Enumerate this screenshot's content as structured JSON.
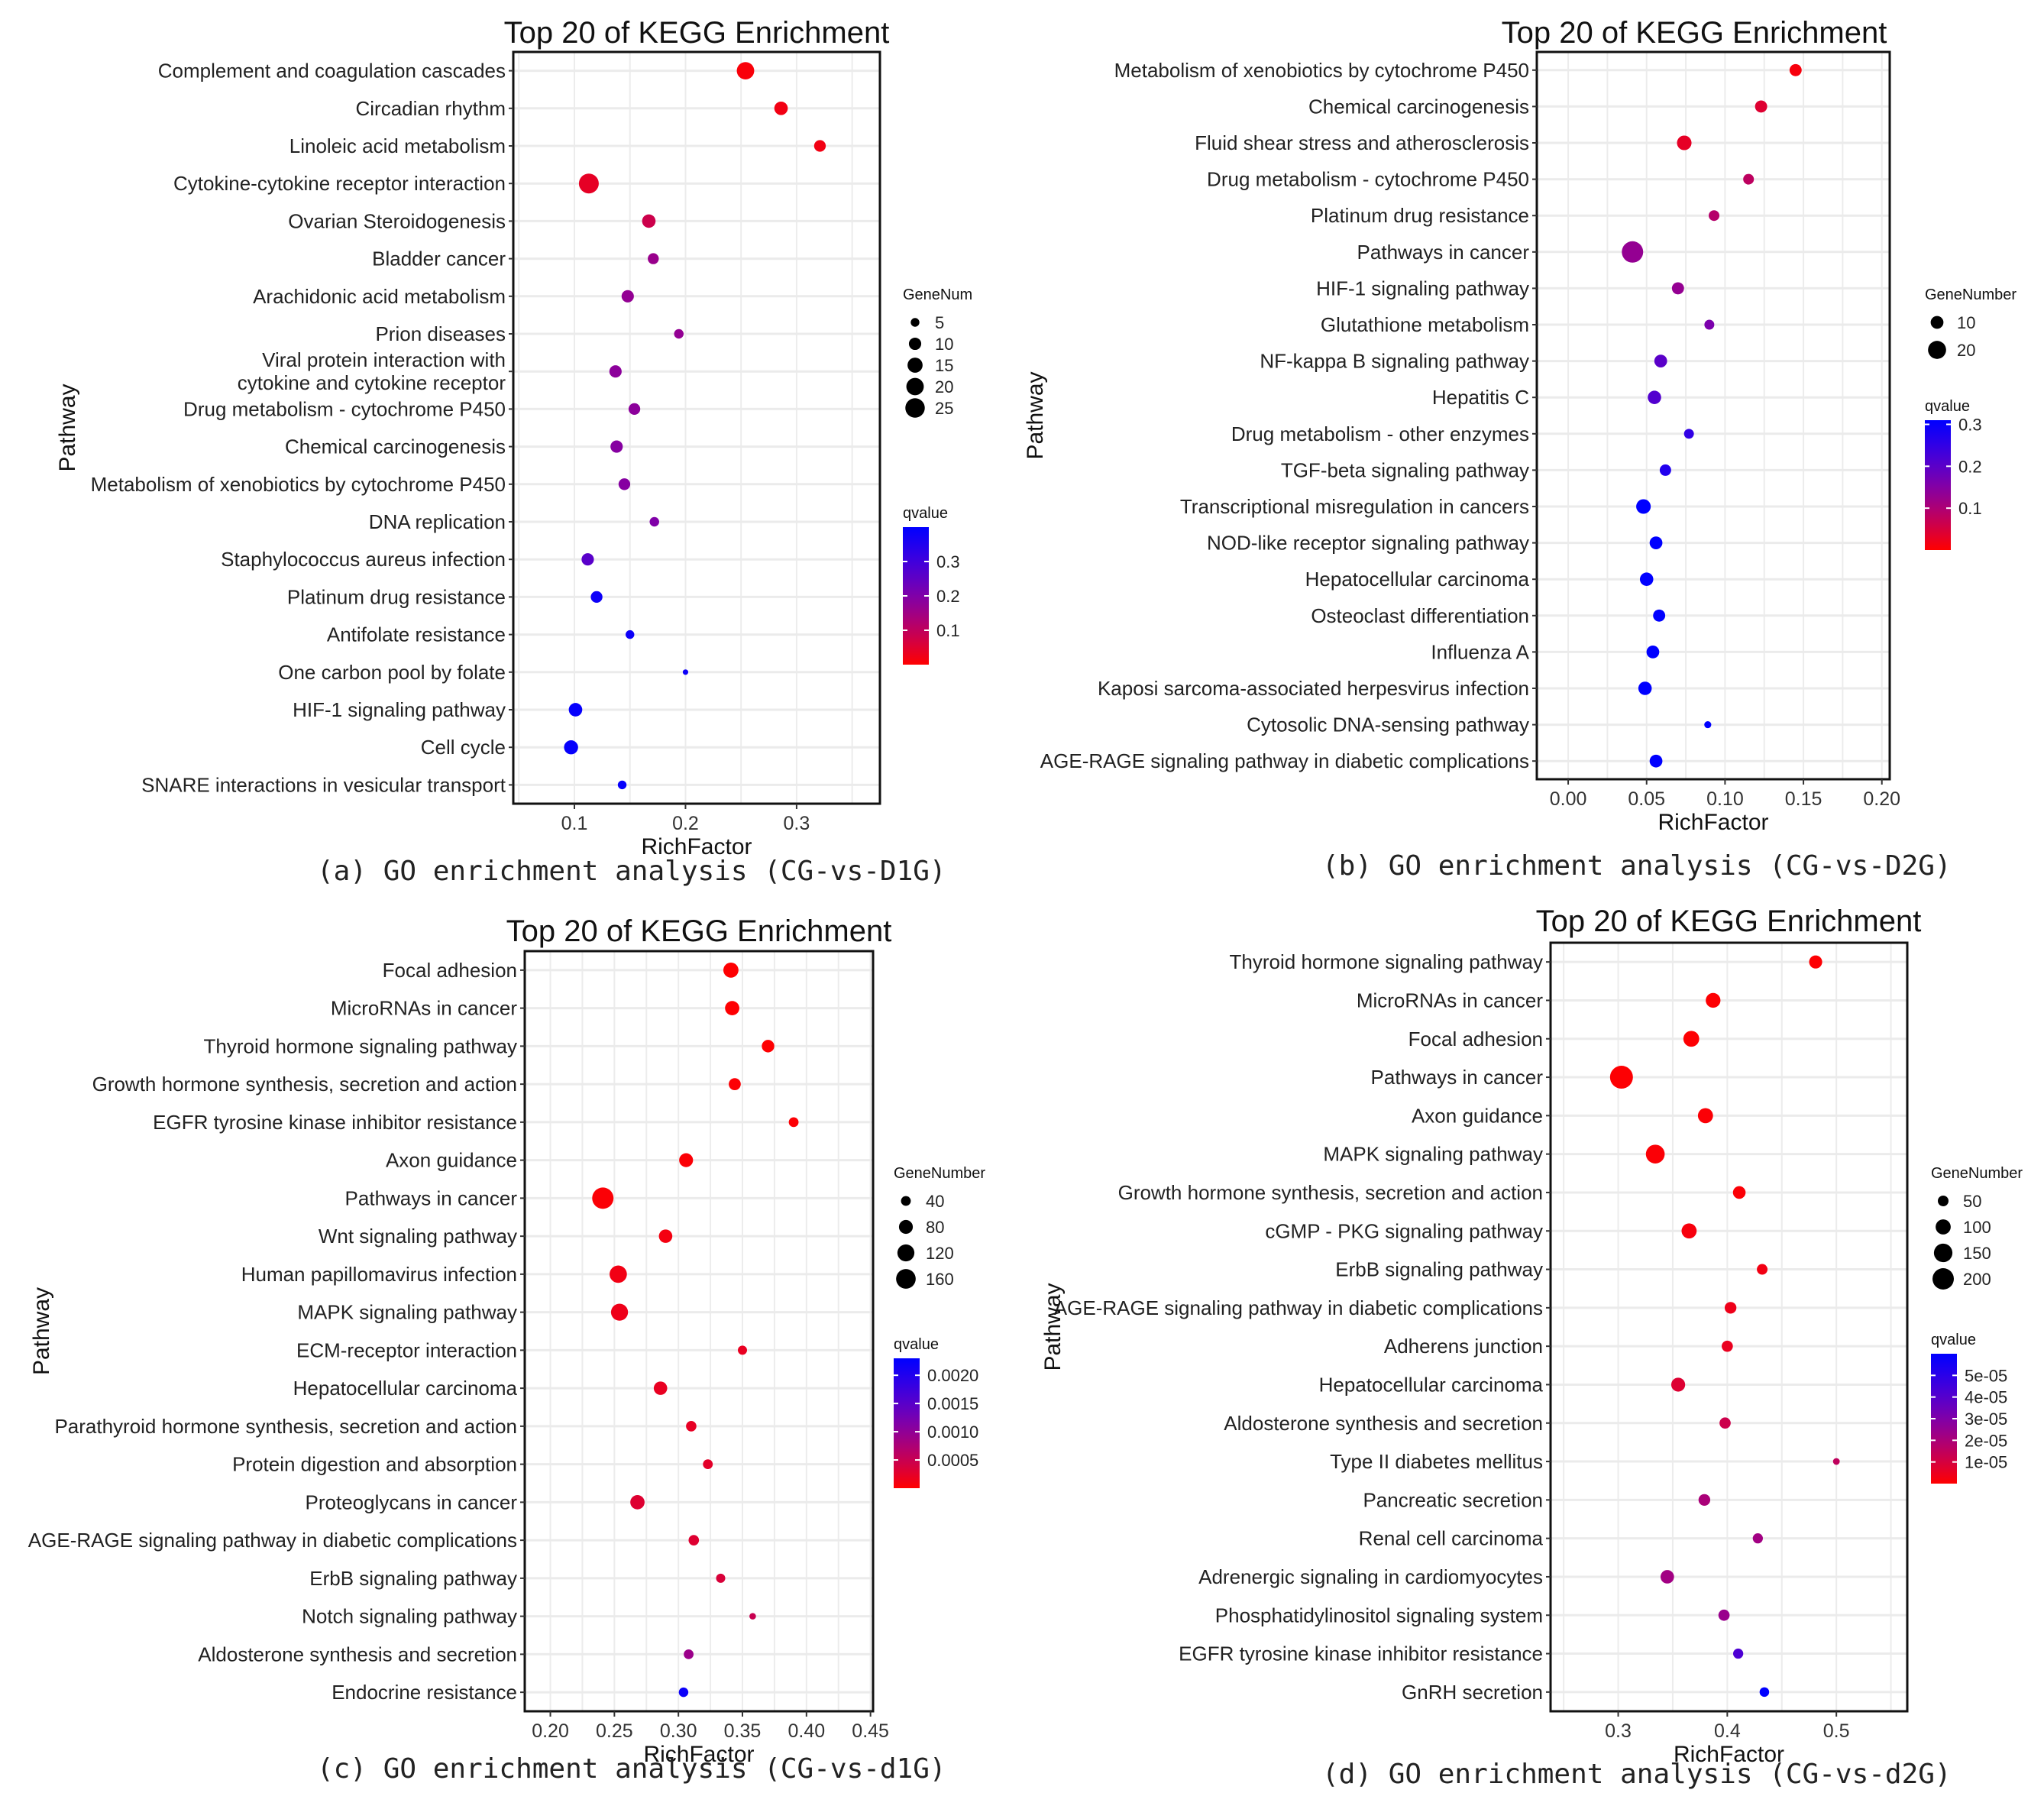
{
  "chart_data": [
    {
      "id": "a",
      "type": "scatter",
      "title": "Top 20 of KEGG Enrichment",
      "xlabel": "RichFactor",
      "ylabel": "Pathway",
      "caption": "(a)  GO enrichment analysis (CG-vs-D1G)",
      "xlim": [
        0.045,
        0.375
      ],
      "xticks": [
        0.1,
        0.2,
        0.3
      ],
      "xtick_labels": [
        "0.1",
        "0.2",
        "0.3"
      ],
      "grid": true,
      "size_legend": {
        "title": "GeneNum",
        "values": [
          5,
          10,
          15,
          20,
          25
        ]
      },
      "color_legend": {
        "title": "qvalue",
        "range": [
          0.0,
          0.4
        ],
        "ticks": [
          0.1,
          0.2,
          0.3
        ],
        "tick_labels": [
          "0.1",
          "0.2",
          "0.3"
        ],
        "low_color": "#ff0000",
        "high_color": "#0000ff"
      },
      "size_range": [
        3,
        26
      ],
      "points": [
        {
          "pathway": "Complement and coagulation cascades",
          "rich_factor": 0.254,
          "gene_number": 20,
          "qvalue": 0.01
        },
        {
          "pathway": "Circadian rhythm",
          "rich_factor": 0.286,
          "gene_number": 12,
          "qvalue": 0.02
        },
        {
          "pathway": "Linoleic acid metabolism",
          "rich_factor": 0.321,
          "gene_number": 9,
          "qvalue": 0.02
        },
        {
          "pathway": "Cytokine-cytokine receptor interaction",
          "rich_factor": 0.113,
          "gene_number": 26,
          "qvalue": 0.04
        },
        {
          "pathway": "Ovarian Steroidogenesis",
          "rich_factor": 0.167,
          "gene_number": 12,
          "qvalue": 0.08
        },
        {
          "pathway": "Bladder cancer",
          "rich_factor": 0.171,
          "gene_number": 8,
          "qvalue": 0.16
        },
        {
          "pathway": "Arachidonic acid metabolism",
          "rich_factor": 0.148,
          "gene_number": 10,
          "qvalue": 0.17
        },
        {
          "pathway": "Prion diseases",
          "rich_factor": 0.194,
          "gene_number": 6,
          "qvalue": 0.17
        },
        {
          "pathway": "Viral protein interaction with\ncytokine and cytokine receptor",
          "rich_factor": 0.137,
          "gene_number": 10,
          "qvalue": 0.18
        },
        {
          "pathway": "Drug metabolism - cytochrome P450",
          "rich_factor": 0.154,
          "gene_number": 9,
          "qvalue": 0.18
        },
        {
          "pathway": "Chemical carcinogenesis",
          "rich_factor": 0.138,
          "gene_number": 10,
          "qvalue": 0.19
        },
        {
          "pathway": "Metabolism of xenobiotics by cytochrome P450",
          "rich_factor": 0.145,
          "gene_number": 9,
          "qvalue": 0.19
        },
        {
          "pathway": "DNA replication",
          "rich_factor": 0.172,
          "gene_number": 6,
          "qvalue": 0.2
        },
        {
          "pathway": "Staphylococcus aureus infection",
          "rich_factor": 0.112,
          "gene_number": 10,
          "qvalue": 0.26
        },
        {
          "pathway": "Platinum drug resistance",
          "rich_factor": 0.12,
          "gene_number": 9,
          "qvalue": 0.38
        },
        {
          "pathway": "Antifolate resistance",
          "rich_factor": 0.15,
          "gene_number": 5,
          "qvalue": 0.38
        },
        {
          "pathway": "One carbon pool by folate",
          "rich_factor": 0.2,
          "gene_number": 2,
          "qvalue": 0.38
        },
        {
          "pathway": "HIF-1 signaling pathway",
          "rich_factor": 0.101,
          "gene_number": 12,
          "qvalue": 0.39
        },
        {
          "pathway": "Cell cycle",
          "rich_factor": 0.097,
          "gene_number": 13,
          "qvalue": 0.39
        },
        {
          "pathway": "SNARE interactions in vesicular transport",
          "rich_factor": 0.143,
          "gene_number": 5,
          "qvalue": 0.39
        }
      ]
    },
    {
      "id": "b",
      "type": "scatter",
      "title": "Top 20 of KEGG Enrichment",
      "xlabel": "RichFactor",
      "ylabel": "Pathway",
      "caption": "(b)  GO enrichment analysis (CG-vs-D2G)",
      "xlim": [
        -0.02,
        0.205
      ],
      "xticks": [
        0.0,
        0.05,
        0.1,
        0.15,
        0.2
      ],
      "xtick_labels": [
        "0.00",
        "0.05",
        "0.10",
        "0.15",
        "0.20"
      ],
      "grid": true,
      "size_legend": {
        "title": "GeneNumber",
        "values": [
          10,
          20
        ]
      },
      "color_legend": {
        "title": "qvalue",
        "range": [
          0.0,
          0.31
        ],
        "ticks": [
          0.1,
          0.2,
          0.3
        ],
        "tick_labels": [
          "0.1",
          "0.2",
          "0.3"
        ],
        "low_color": "#ff0000",
        "high_color": "#0000ff"
      },
      "size_range": [
        3,
        28
      ],
      "points": [
        {
          "pathway": "Metabolism of xenobiotics by cytochrome P450",
          "rich_factor": 0.145,
          "gene_number": 9,
          "qvalue": 0.01
        },
        {
          "pathway": "Chemical carcinogenesis",
          "rich_factor": 0.123,
          "gene_number": 9,
          "qvalue": 0.04
        },
        {
          "pathway": "Fluid shear stress and atherosclerosis",
          "rich_factor": 0.074,
          "gene_number": 13,
          "qvalue": 0.03
        },
        {
          "pathway": "Drug metabolism - cytochrome P450",
          "rich_factor": 0.115,
          "gene_number": 7,
          "qvalue": 0.08
        },
        {
          "pathway": "Platinum drug resistance",
          "rich_factor": 0.093,
          "gene_number": 7,
          "qvalue": 0.09
        },
        {
          "pathway": "Pathways in cancer",
          "rich_factor": 0.041,
          "gene_number": 28,
          "qvalue": 0.13
        },
        {
          "pathway": "HIF-1 signaling pathway",
          "rich_factor": 0.07,
          "gene_number": 9,
          "qvalue": 0.13
        },
        {
          "pathway": "Glutathione metabolism",
          "rich_factor": 0.09,
          "gene_number": 6,
          "qvalue": 0.16
        },
        {
          "pathway": "NF-kappa B signaling pathway",
          "rich_factor": 0.059,
          "gene_number": 10,
          "qvalue": 0.2
        },
        {
          "pathway": "Hepatitis C",
          "rich_factor": 0.055,
          "gene_number": 11,
          "qvalue": 0.21
        },
        {
          "pathway": "Drug metabolism - other enzymes",
          "rich_factor": 0.077,
          "gene_number": 6,
          "qvalue": 0.25
        },
        {
          "pathway": "TGF-beta signaling pathway",
          "rich_factor": 0.062,
          "gene_number": 8,
          "qvalue": 0.27
        },
        {
          "pathway": "Transcriptional misregulation in cancers",
          "rich_factor": 0.048,
          "gene_number": 13,
          "qvalue": 0.31
        },
        {
          "pathway": "NOD-like receptor signaling pathway",
          "rich_factor": 0.056,
          "gene_number": 10,
          "qvalue": 0.31
        },
        {
          "pathway": "Hepatocellular carcinoma",
          "rich_factor": 0.05,
          "gene_number": 11,
          "qvalue": 0.31
        },
        {
          "pathway": "Osteoclast differentiation",
          "rich_factor": 0.058,
          "gene_number": 9,
          "qvalue": 0.31
        },
        {
          "pathway": "Influenza A",
          "rich_factor": 0.054,
          "gene_number": 10,
          "qvalue": 0.31
        },
        {
          "pathway": "Kaposi sarcoma-associated herpesvirus infection",
          "rich_factor": 0.049,
          "gene_number": 11,
          "qvalue": 0.31
        },
        {
          "pathway": "Cytosolic DNA-sensing pathway",
          "rich_factor": 0.089,
          "gene_number": 3,
          "qvalue": 0.31
        },
        {
          "pathway": "AGE-RAGE signaling pathway in diabetic complications",
          "rich_factor": 0.056,
          "gene_number": 10,
          "qvalue": 0.31
        }
      ]
    },
    {
      "id": "c",
      "type": "scatter",
      "title": "Top 20 of KEGG Enrichment",
      "xlabel": "RichFactor",
      "ylabel": "Pathway",
      "caption": "(c)  GO enrichment analysis (CG-vs-d1G)",
      "xlim": [
        0.18,
        0.452
      ],
      "xticks": [
        0.2,
        0.25,
        0.3,
        0.35,
        0.4,
        0.45
      ],
      "xtick_labels": [
        "0.20",
        "0.25",
        "0.30",
        "0.35",
        "0.40",
        "0.45"
      ],
      "grid": true,
      "size_legend": {
        "title": "GeneNumber",
        "values": [
          40,
          80,
          120,
          160
        ]
      },
      "color_legend": {
        "title": "qvalue",
        "range": [
          0.0,
          0.0023
        ],
        "ticks": [
          0.0005,
          0.001,
          0.0015,
          0.002
        ],
        "tick_labels": [
          "0.0005",
          "0.0010",
          "0.0015",
          "0.0020"
        ],
        "low_color": "#ff0000",
        "high_color": "#0000ff"
      },
      "size_range": [
        3,
        28
      ],
      "points": [
        {
          "pathway": "Focal adhesion",
          "rich_factor": 0.341,
          "gene_number": 95,
          "qvalue": 1e-05
        },
        {
          "pathway": "MicroRNAs in cancer",
          "rich_factor": 0.342,
          "gene_number": 85,
          "qvalue": 1e-05
        },
        {
          "pathway": "Thyroid hormone signaling pathway",
          "rich_factor": 0.37,
          "gene_number": 65,
          "qvalue": 1e-05
        },
        {
          "pathway": "Growth hormone synthesis, secretion and action",
          "rich_factor": 0.344,
          "gene_number": 60,
          "qvalue": 3e-05
        },
        {
          "pathway": "EGFR tyrosine kinase inhibitor resistance",
          "rich_factor": 0.39,
          "gene_number": 40,
          "qvalue": 3e-05
        },
        {
          "pathway": "Axon guidance",
          "rich_factor": 0.306,
          "gene_number": 80,
          "qvalue": 4e-05
        },
        {
          "pathway": "Pathways in cancer",
          "rich_factor": 0.241,
          "gene_number": 190,
          "qvalue": 4e-05
        },
        {
          "pathway": "Wnt signaling pathway",
          "rich_factor": 0.29,
          "gene_number": 75,
          "qvalue": 0.0001
        },
        {
          "pathway": "Human papillomavirus infection",
          "rich_factor": 0.253,
          "gene_number": 125,
          "qvalue": 0.00012
        },
        {
          "pathway": "MAPK signaling pathway",
          "rich_factor": 0.254,
          "gene_number": 120,
          "qvalue": 0.00015
        },
        {
          "pathway": "ECM-receptor interaction",
          "rich_factor": 0.35,
          "gene_number": 35,
          "qvalue": 0.0002
        },
        {
          "pathway": "Hepatocellular carcinoma",
          "rich_factor": 0.286,
          "gene_number": 75,
          "qvalue": 0.0002
        },
        {
          "pathway": "Parathyroid hormone synthesis, secretion and action",
          "rich_factor": 0.31,
          "gene_number": 45,
          "qvalue": 0.00022
        },
        {
          "pathway": "Protein digestion and absorption",
          "rich_factor": 0.323,
          "gene_number": 40,
          "qvalue": 0.00025
        },
        {
          "pathway": "Proteoglycans in cancer",
          "rich_factor": 0.268,
          "gene_number": 85,
          "qvalue": 0.0003
        },
        {
          "pathway": "AGE-RAGE signaling pathway in diabetic complications",
          "rich_factor": 0.312,
          "gene_number": 45,
          "qvalue": 0.0003
        },
        {
          "pathway": "ErbB signaling pathway",
          "rich_factor": 0.333,
          "gene_number": 35,
          "qvalue": 0.00035
        },
        {
          "pathway": "Notch signaling pathway",
          "rich_factor": 0.358,
          "gene_number": 18,
          "qvalue": 0.0005
        },
        {
          "pathway": "Aldosterone synthesis and secretion",
          "rich_factor": 0.308,
          "gene_number": 40,
          "qvalue": 0.0009
        },
        {
          "pathway": "Endocrine resistance",
          "rich_factor": 0.304,
          "gene_number": 38,
          "qvalue": 0.0022
        }
      ]
    },
    {
      "id": "d",
      "type": "scatter",
      "title": "Top 20 of KEGG Enrichment",
      "xlabel": "RichFactor",
      "ylabel": "Pathway",
      "caption": "(d)  GO enrichment analysis (CG-vs-d2G)",
      "xlim": [
        0.238,
        0.565
      ],
      "xticks": [
        0.3,
        0.4,
        0.5
      ],
      "xtick_labels": [
        "0.3",
        "0.4",
        "0.5"
      ],
      "grid": true,
      "size_legend": {
        "title": "GeneNumber",
        "values": [
          50,
          100,
          150,
          200
        ]
      },
      "color_legend": {
        "title": "qvalue",
        "range": [
          0.0,
          6e-05
        ],
        "ticks": [
          1e-05,
          2e-05,
          3e-05,
          4e-05,
          5e-05
        ],
        "tick_labels": [
          "1e-05",
          "2e-05",
          "3e-05",
          "4e-05",
          "5e-05"
        ],
        "low_color": "#ff0000",
        "high_color": "#0000ff"
      },
      "size_range": [
        3,
        30
      ],
      "points": [
        {
          "pathway": "Thyroid hormone signaling pathway",
          "rich_factor": 0.481,
          "gene_number": 75,
          "qvalue": 5e-07
        },
        {
          "pathway": "MicroRNAs in cancer",
          "rich_factor": 0.387,
          "gene_number": 95,
          "qvalue": 5e-07
        },
        {
          "pathway": "Focal adhesion",
          "rich_factor": 0.367,
          "gene_number": 110,
          "qvalue": 5e-07
        },
        {
          "pathway": "Pathways in cancer",
          "rich_factor": 0.303,
          "gene_number": 230,
          "qvalue": 5e-07
        },
        {
          "pathway": "Axon guidance",
          "rich_factor": 0.38,
          "gene_number": 100,
          "qvalue": 1e-06
        },
        {
          "pathway": "MAPK signaling pathway",
          "rich_factor": 0.334,
          "gene_number": 155,
          "qvalue": 1e-06
        },
        {
          "pathway": "Growth hormone synthesis, secretion and action",
          "rich_factor": 0.411,
          "gene_number": 70,
          "qvalue": 1e-06
        },
        {
          "pathway": "cGMP - PKG signaling pathway",
          "rich_factor": 0.365,
          "gene_number": 100,
          "qvalue": 2e-06
        },
        {
          "pathway": "ErbB signaling pathway",
          "rich_factor": 0.432,
          "gene_number": 50,
          "qvalue": 3e-06
        },
        {
          "pathway": "AGE-RAGE signaling pathway in diabetic complications",
          "rich_factor": 0.403,
          "gene_number": 60,
          "qvalue": 4e-06
        },
        {
          "pathway": "Adherens junction",
          "rich_factor": 0.4,
          "gene_number": 55,
          "qvalue": 5e-06
        },
        {
          "pathway": "Hepatocellular carcinoma",
          "rich_factor": 0.355,
          "gene_number": 85,
          "qvalue": 8e-06
        },
        {
          "pathway": "Aldosterone synthesis and secretion",
          "rich_factor": 0.398,
          "gene_number": 55,
          "qvalue": 1.2e-05
        },
        {
          "pathway": "Type II diabetes mellitus",
          "rich_factor": 0.5,
          "gene_number": 20,
          "qvalue": 1.5e-05
        },
        {
          "pathway": "Pancreatic secretion",
          "rich_factor": 0.379,
          "gene_number": 60,
          "qvalue": 2e-05
        },
        {
          "pathway": "Renal cell carcinoma",
          "rich_factor": 0.428,
          "gene_number": 45,
          "qvalue": 2.2e-05
        },
        {
          "pathway": "Adrenergic signaling in cardiomyocytes",
          "rich_factor": 0.345,
          "gene_number": 80,
          "qvalue": 2.2e-05
        },
        {
          "pathway": "Phosphatidylinositol signaling system",
          "rich_factor": 0.397,
          "gene_number": 55,
          "qvalue": 2.4e-05
        },
        {
          "pathway": "EGFR tyrosine kinase inhibitor resistance",
          "rich_factor": 0.41,
          "gene_number": 45,
          "qvalue": 4.2e-05
        },
        {
          "pathway": "GnRH secretion",
          "rich_factor": 0.434,
          "gene_number": 40,
          "qvalue": 6e-05
        }
      ]
    }
  ]
}
